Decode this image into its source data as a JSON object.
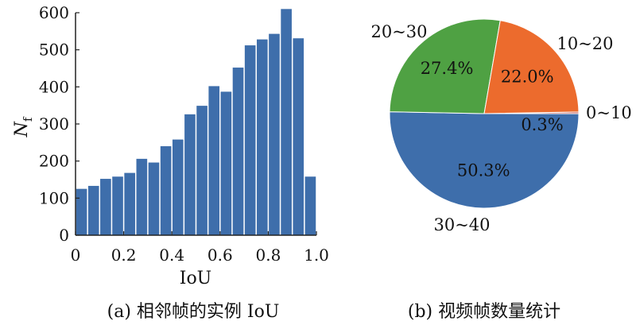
{
  "chart_data": [
    {
      "type": "bar",
      "caption": "(a) 相邻帧的实例 IoU",
      "xlabel": "IoU",
      "ylabel": "N",
      "ylabel_sub": "f",
      "xlim": [
        0,
        1.0
      ],
      "ylim": [
        0,
        600
      ],
      "xticks": [
        "0",
        "0.2",
        "0.4",
        "0.6",
        "0.8",
        "1.0"
      ],
      "yticks": [
        "0",
        "100",
        "200",
        "300",
        "400",
        "500",
        "600"
      ],
      "bar_color": "#3e6eab",
      "bin_width": 0.045,
      "bars": [
        {
          "x": 0.025,
          "value": 125
        },
        {
          "x": 0.075,
          "value": 133
        },
        {
          "x": 0.125,
          "value": 152
        },
        {
          "x": 0.175,
          "value": 158
        },
        {
          "x": 0.225,
          "value": 168
        },
        {
          "x": 0.275,
          "value": 206
        },
        {
          "x": 0.325,
          "value": 196
        },
        {
          "x": 0.375,
          "value": 240
        },
        {
          "x": 0.425,
          "value": 258
        },
        {
          "x": 0.475,
          "value": 326
        },
        {
          "x": 0.525,
          "value": 349
        },
        {
          "x": 0.575,
          "value": 402
        },
        {
          "x": 0.625,
          "value": 387
        },
        {
          "x": 0.675,
          "value": 452
        },
        {
          "x": 0.725,
          "value": 512
        },
        {
          "x": 0.775,
          "value": 528
        },
        {
          "x": 0.825,
          "value": 543
        },
        {
          "x": 0.875,
          "value": 610
        },
        {
          "x": 0.925,
          "value": 531
        },
        {
          "x": 0.975,
          "value": 158
        }
      ]
    },
    {
      "type": "pie",
      "caption": "(b) 视频帧数量统计",
      "slices": [
        {
          "label": "0~10",
          "value": 0.3,
          "pct": "0.3%",
          "color": "#c0504d"
        },
        {
          "label": "30~40",
          "value": 50.3,
          "pct": "50.3%",
          "color": "#3e6eab"
        },
        {
          "label": "20~30",
          "value": 27.4,
          "pct": "27.4%",
          "color": "#4fa143"
        },
        {
          "label": "10~20",
          "value": 22.0,
          "pct": "22.0%",
          "color": "#ec6b2d"
        }
      ]
    }
  ]
}
